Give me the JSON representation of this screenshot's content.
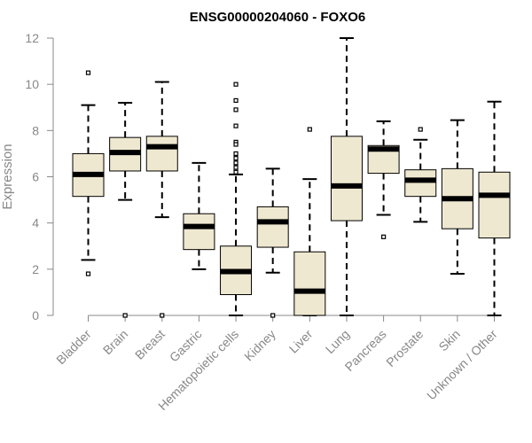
{
  "chart_data": {
    "type": "boxplot",
    "title": "ENSG00000204060 - FOXO6",
    "xlabel": "",
    "ylabel": "Expression",
    "ylim": [
      0,
      12
    ],
    "yticks": [
      0,
      2,
      4,
      6,
      8,
      10,
      12
    ],
    "categories": [
      "Bladder",
      "Brain",
      "Breast",
      "Gastric",
      "Hematopoietic cells",
      "Kidney",
      "Liver",
      "Lung",
      "Pancreas",
      "Prostate",
      "Skin",
      "Unknown / Other"
    ],
    "boxes": [
      {
        "name": "Bladder",
        "whisker_low": 2.4,
        "q1": 5.15,
        "median": 6.1,
        "q3": 7.0,
        "whisker_high": 9.1,
        "outliers": [
          10.5,
          1.8
        ]
      },
      {
        "name": "Brain",
        "whisker_low": 5.0,
        "q1": 6.25,
        "median": 7.05,
        "q3": 7.7,
        "whisker_high": 9.2,
        "outliers": [
          0.0
        ]
      },
      {
        "name": "Breast",
        "whisker_low": 4.25,
        "q1": 6.25,
        "median": 7.3,
        "q3": 7.75,
        "whisker_high": 10.1,
        "outliers": [
          0.0
        ]
      },
      {
        "name": "Gastric",
        "whisker_low": 2.0,
        "q1": 2.85,
        "median": 3.85,
        "q3": 4.4,
        "whisker_high": 6.6,
        "outliers": []
      },
      {
        "name": "Hematopoietic cells",
        "whisker_low": 0.0,
        "q1": 0.9,
        "median": 1.9,
        "q3": 3.0,
        "whisker_high": 6.1,
        "outliers": [
          10.0,
          9.3,
          8.9,
          8.2,
          7.5,
          7.4,
          7.0,
          6.8,
          6.6,
          6.4,
          6.2
        ]
      },
      {
        "name": "Kidney",
        "whisker_low": 1.85,
        "q1": 2.95,
        "median": 4.05,
        "q3": 4.7,
        "whisker_high": 6.35,
        "outliers": [
          0.0
        ]
      },
      {
        "name": "Liver",
        "whisker_low": 0.0,
        "q1": 0.0,
        "median": 1.05,
        "q3": 2.75,
        "whisker_high": 5.9,
        "outliers": [
          8.05
        ]
      },
      {
        "name": "Lung",
        "whisker_low": 0.0,
        "q1": 4.1,
        "median": 5.6,
        "q3": 7.75,
        "whisker_high": 12.0,
        "outliers": []
      },
      {
        "name": "Pancreas",
        "whisker_low": 4.35,
        "q1": 6.15,
        "median": 7.2,
        "q3": 7.35,
        "whisker_high": 8.4,
        "outliers": [
          3.4
        ]
      },
      {
        "name": "Prostate",
        "whisker_low": 4.05,
        "q1": 5.15,
        "median": 5.85,
        "q3": 6.3,
        "whisker_high": 7.6,
        "outliers": [
          8.05
        ]
      },
      {
        "name": "Skin",
        "whisker_low": 1.8,
        "q1": 3.75,
        "median": 5.05,
        "q3": 6.35,
        "whisker_high": 8.45,
        "outliers": []
      },
      {
        "name": "Unknown / Other",
        "whisker_low": 0.0,
        "q1": 3.35,
        "median": 5.2,
        "q3": 6.2,
        "whisker_high": 9.25,
        "outliers": []
      }
    ],
    "grid": false,
    "box_fill": "#efe8d0",
    "box_stroke": "#000000",
    "axis_color": "#888888"
  }
}
